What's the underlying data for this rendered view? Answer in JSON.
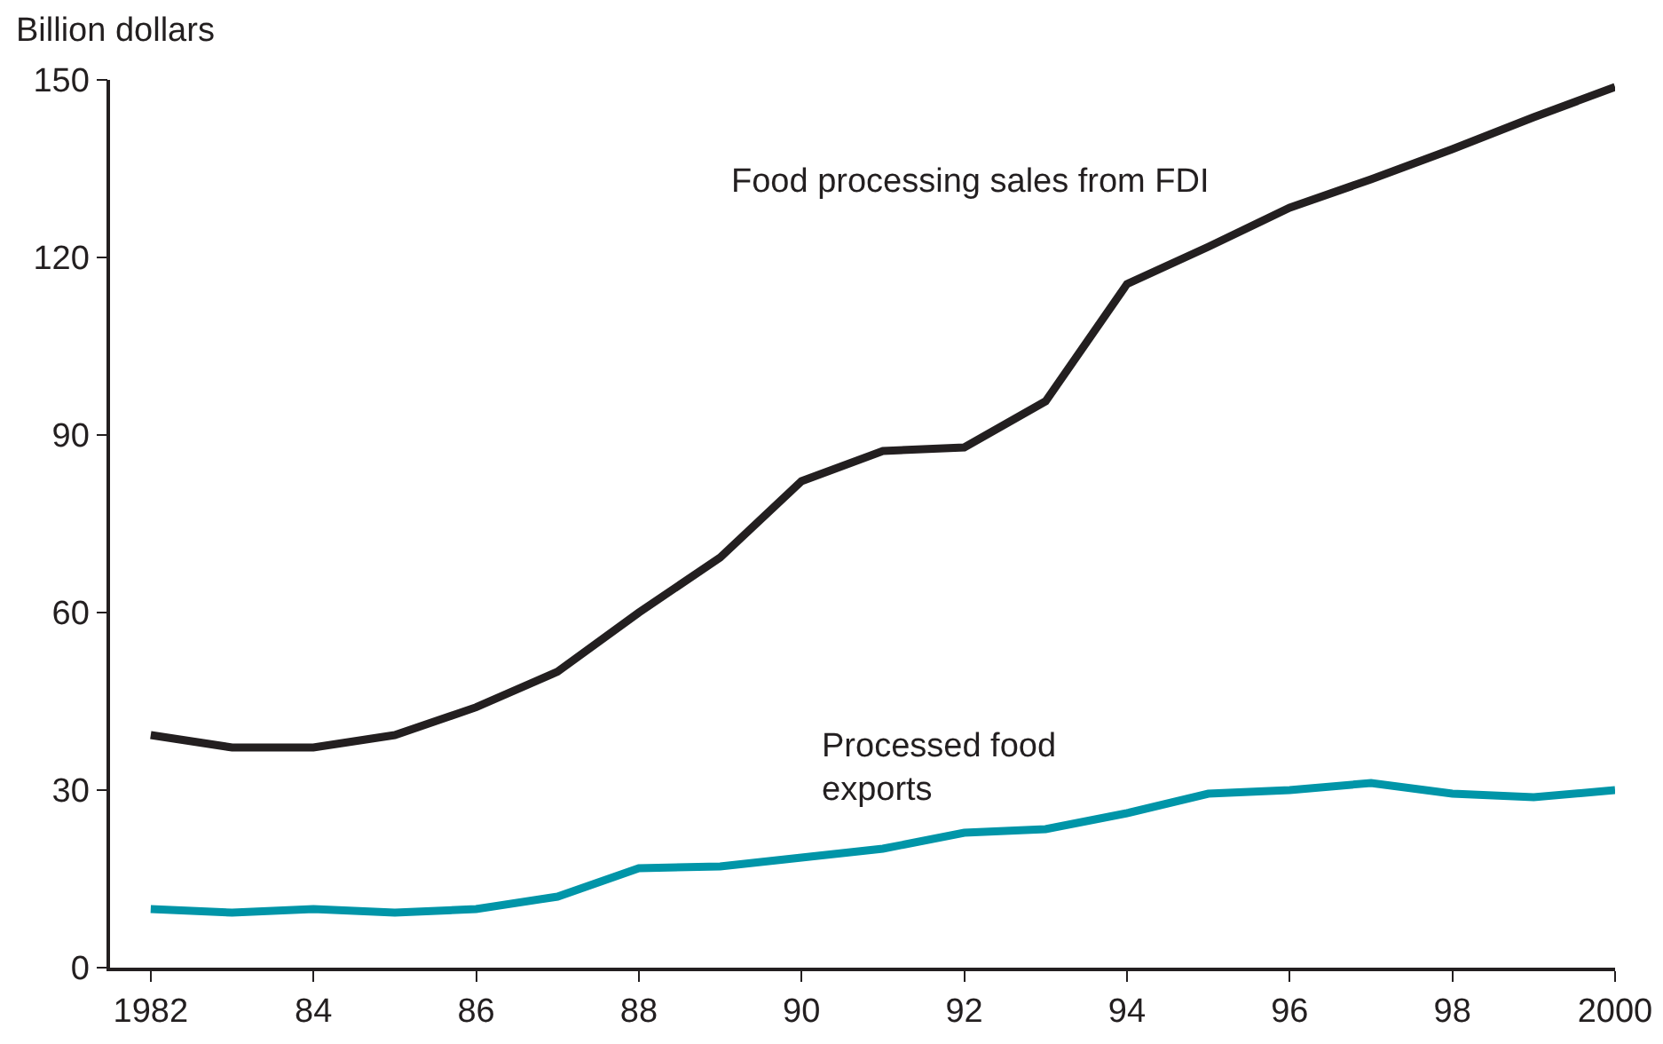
{
  "chart_data": {
    "type": "line",
    "ylabel": "Billion dollars",
    "x": [
      1982,
      1983,
      1984,
      1985,
      1986,
      1987,
      1988,
      1989,
      1990,
      1991,
      1992,
      1993,
      1994,
      1995,
      1996,
      1997,
      1998,
      1999,
      2000
    ],
    "series": [
      {
        "name": "Food processing sales from FDI",
        "color": "#231f20",
        "values": [
          39.3,
          37.2,
          37.2,
          39.3,
          44,
          50,
          60,
          69.3,
          82.2,
          87.3,
          87.9,
          95.7,
          115.5,
          121.8,
          128.4,
          133.2,
          138.3,
          143.7,
          148.8
        ]
      },
      {
        "name": "Processed food exports",
        "color": "#0095a8",
        "values": [
          9.9,
          9.3,
          9.9,
          9.3,
          9.9,
          12,
          16.8,
          17.1,
          18.6,
          20.1,
          22.8,
          23.4,
          26.1,
          29.4,
          30,
          31.2,
          29.4,
          28.8,
          30
        ]
      }
    ],
    "xlim": [
      1981.5,
      2000
    ],
    "xticks": [
      1982,
      {
        "value": 1984,
        "label": "84"
      },
      {
        "value": 1986,
        "label": "86"
      },
      {
        "value": 1988,
        "label": "88"
      },
      {
        "value": 1990,
        "label": "90"
      },
      {
        "value": 1992,
        "label": "92"
      },
      {
        "value": 1994,
        "label": "94"
      },
      {
        "value": 1996,
        "label": "96"
      },
      {
        "value": 1998,
        "label": "98"
      },
      2000
    ],
    "ylim": [
      0,
      150
    ],
    "yticks": [
      0,
      30,
      60,
      90,
      120,
      150
    ],
    "grid": false,
    "legend": false,
    "marker": "none",
    "line_style": "solid"
  }
}
